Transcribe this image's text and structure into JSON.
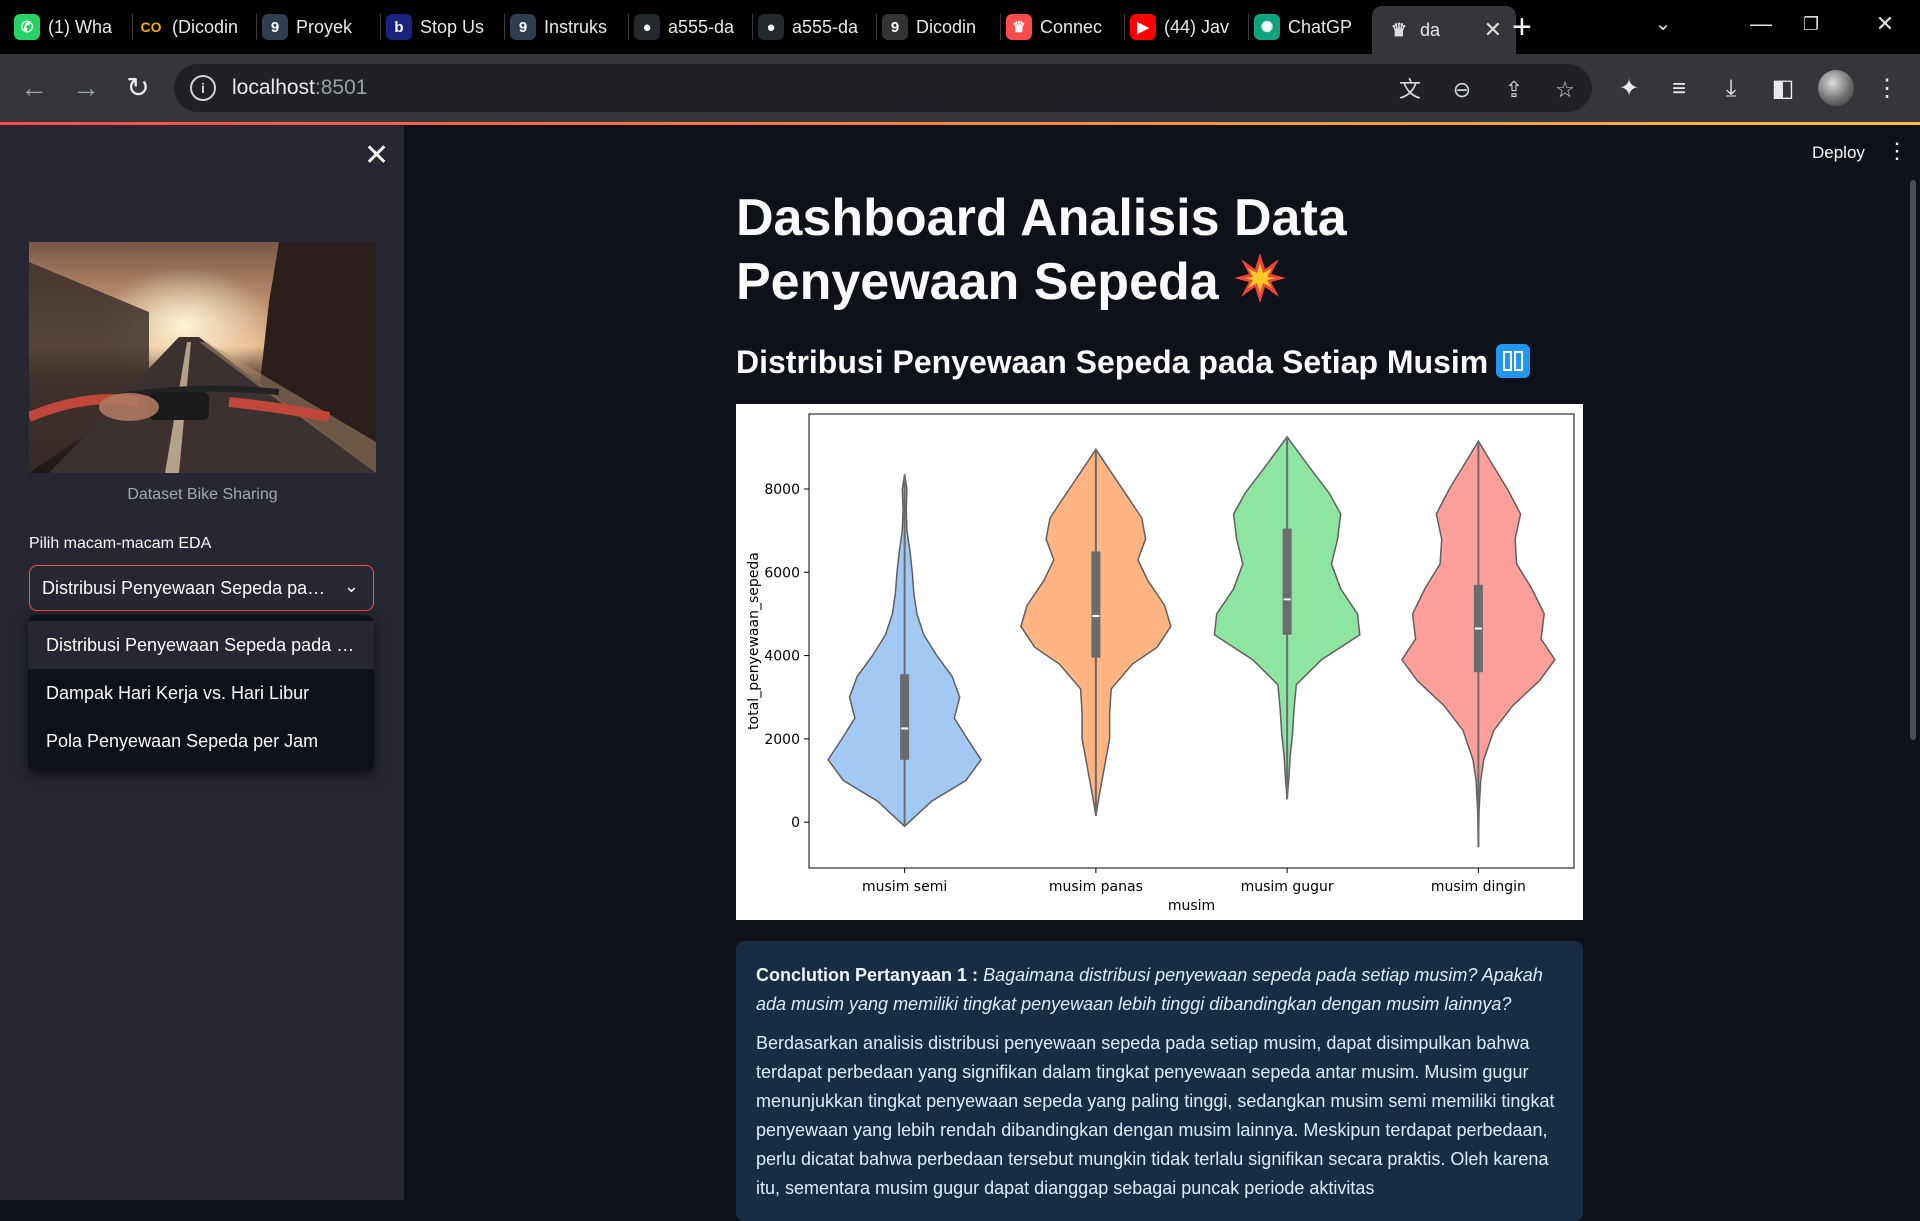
{
  "browser": {
    "tabs": [
      {
        "title": "(1) Wha",
        "icon": "whatsapp-icon",
        "color": "#25d366"
      },
      {
        "title": "(Dicodin",
        "icon": "colab-icon",
        "color": "#f9ab00"
      },
      {
        "title": "Proyek",
        "icon": "dicoding-icon",
        "color": "#2d3e50"
      },
      {
        "title": "Stop Us",
        "icon": "b-icon",
        "color": "#1a237e"
      },
      {
        "title": "Instruks",
        "icon": "dicoding-icon",
        "color": "#2d3e50"
      },
      {
        "title": "a555-da",
        "icon": "github-icon",
        "color": "#24292e"
      },
      {
        "title": "a555-da",
        "icon": "github-icon",
        "color": "#24292e"
      },
      {
        "title": "Dicodin",
        "icon": "dicoding-icon",
        "color": "#333"
      },
      {
        "title": "Connec",
        "icon": "crown-icon",
        "color": "#ff4b4b"
      },
      {
        "title": "(44) Jav",
        "icon": "youtube-icon",
        "color": "#ff0000"
      },
      {
        "title": "ChatGP",
        "icon": "chatgpt-icon",
        "color": "#10a37f"
      }
    ],
    "active_tab": {
      "title": "da",
      "icon": "streamlit-icon"
    },
    "url_host": "localhost",
    "url_port": ":8501"
  },
  "app": {
    "deploy_label": "Deploy",
    "sidebar": {
      "image_caption": "Dataset Bike Sharing",
      "select_label": "Pilih macam-macam EDA",
      "selected": "Distribusi Penyewaan Sepeda pada Setiap Musim",
      "options": [
        "Distribusi Penyewaan Sepeda pada Setiap Musim",
        "Dampak Hari Kerja vs. Hari Libur",
        "Pola Penyewaan Sepeda per Jam"
      ]
    },
    "title": "Dashboard Analisis Data Penyewaan Sepeda",
    "subtitle": "Distribusi Penyewaan Sepeda pada Setiap Musim",
    "conclusion": {
      "lead": "Conclution Pertanyaan 1 :",
      "question": "Bagaimana distribusi penyewaan sepeda pada setiap musim? Apakah ada musim yang memiliki tingkat penyewaan lebih tinggi dibandingkan dengan musim lainnya?",
      "body": "Berdasarkan analisis distribusi penyewaan sepeda pada setiap musim, dapat disimpulkan bahwa terdapat perbedaan yang signifikan dalam tingkat penyewaan sepeda antar musim. Musim gugur menunjukkan tingkat penyewaan sepeda yang paling tinggi, sedangkan musim semi memiliki tingkat penyewaan yang lebih rendah dibandingkan dengan musim lainnya. Meskipun terdapat perbedaan, perlu dicatat bahwa perbedaan tersebut mungkin tidak terlalu signifikan secara praktis. Oleh karena itu, sementara musim gugur dapat dianggap sebagai puncak periode aktivitas"
    }
  },
  "chart_data": {
    "type": "violin",
    "xlabel": "musim",
    "ylabel": "total_penyewaan_sepeda",
    "ylim": [
      -1100,
      9800
    ],
    "yticks": [
      0,
      2000,
      4000,
      6000,
      8000
    ],
    "categories": [
      "musim semi",
      "musim panas",
      "musim gugur",
      "musim dingin"
    ],
    "colors": [
      "#a1c9f4",
      "#ffb482",
      "#8de5a1",
      "#ff9f9b"
    ],
    "violins": [
      {
        "min": -100,
        "max": 8350,
        "q1": 1500,
        "median": 2250,
        "q3": 3550,
        "profile": [
          [
            -100,
            0
          ],
          [
            500,
            0.35
          ],
          [
            1000,
            0.8
          ],
          [
            1500,
            1.0
          ],
          [
            2000,
            0.82
          ],
          [
            2500,
            0.65
          ],
          [
            3000,
            0.72
          ],
          [
            3500,
            0.62
          ],
          [
            4000,
            0.42
          ],
          [
            4500,
            0.25
          ],
          [
            5000,
            0.16
          ],
          [
            5500,
            0.12
          ],
          [
            6000,
            0.1
          ],
          [
            6500,
            0.07
          ],
          [
            7000,
            0.03
          ],
          [
            7500,
            0.02
          ],
          [
            8000,
            0.03
          ],
          [
            8350,
            0
          ]
        ]
      },
      {
        "min": 150,
        "max": 8950,
        "q1": 3950,
        "median": 4950,
        "q3": 6500,
        "profile": [
          [
            150,
            0
          ],
          [
            600,
            0.04
          ],
          [
            1200,
            0.1
          ],
          [
            2000,
            0.18
          ],
          [
            2600,
            0.18
          ],
          [
            3200,
            0.2
          ],
          [
            3800,
            0.48
          ],
          [
            4200,
            0.8
          ],
          [
            4700,
            0.98
          ],
          [
            5200,
            0.9
          ],
          [
            5800,
            0.68
          ],
          [
            6300,
            0.55
          ],
          [
            6800,
            0.65
          ],
          [
            7300,
            0.6
          ],
          [
            7800,
            0.42
          ],
          [
            8400,
            0.2
          ],
          [
            8950,
            0
          ]
        ]
      },
      {
        "min": 550,
        "max": 9250,
        "q1": 4500,
        "median": 5350,
        "q3": 7050,
        "profile": [
          [
            550,
            0
          ],
          [
            1000,
            0.02
          ],
          [
            1600,
            0.04
          ],
          [
            2100,
            0.07
          ],
          [
            2700,
            0.09
          ],
          [
            3300,
            0.12
          ],
          [
            3900,
            0.45
          ],
          [
            4500,
            0.95
          ],
          [
            5000,
            0.92
          ],
          [
            5600,
            0.7
          ],
          [
            6200,
            0.58
          ],
          [
            6800,
            0.66
          ],
          [
            7400,
            0.7
          ],
          [
            7900,
            0.55
          ],
          [
            8500,
            0.3
          ],
          [
            9250,
            0
          ]
        ]
      },
      {
        "min": -600,
        "max": 9150,
        "q1": 3600,
        "median": 4650,
        "q3": 5700,
        "profile": [
          [
            -600,
            0
          ],
          [
            300,
            0.01
          ],
          [
            1000,
            0.03
          ],
          [
            1500,
            0.07
          ],
          [
            2200,
            0.2
          ],
          [
            2800,
            0.45
          ],
          [
            3400,
            0.8
          ],
          [
            3900,
            1.0
          ],
          [
            4400,
            0.82
          ],
          [
            5000,
            0.86
          ],
          [
            5600,
            0.7
          ],
          [
            6200,
            0.5
          ],
          [
            6800,
            0.48
          ],
          [
            7400,
            0.55
          ],
          [
            8000,
            0.38
          ],
          [
            8600,
            0.18
          ],
          [
            9150,
            0
          ]
        ]
      }
    ]
  }
}
